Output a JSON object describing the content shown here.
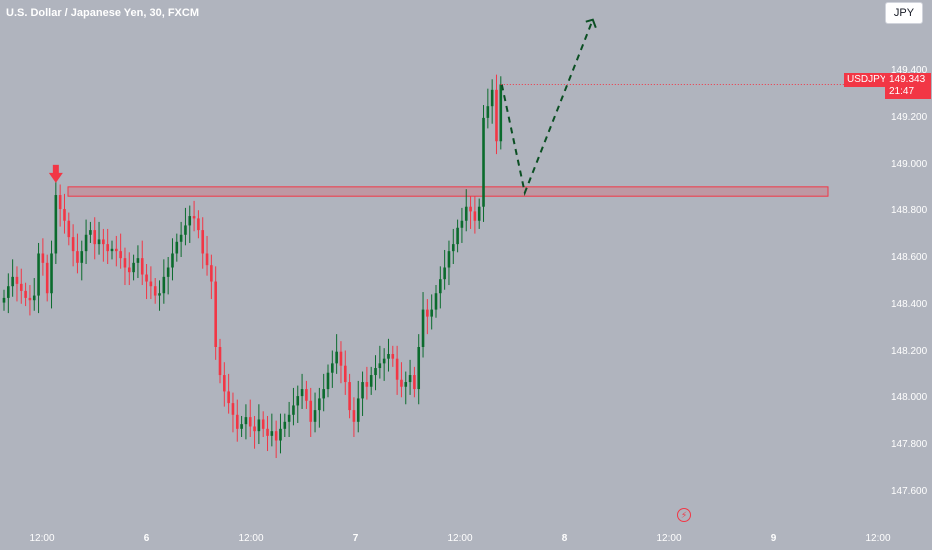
{
  "header": {
    "title": "U.S. Dollar / Japanese Yen, 30, FXCM"
  },
  "currency_button": {
    "label": "JPY"
  },
  "price_label": {
    "symbol": "USDJPY",
    "price": "149.343",
    "countdown": "21:47"
  },
  "chart_data": {
    "type": "candlestick",
    "title": "U.S. Dollar / Japanese Yen, 30, FXCM",
    "y_ticks": [
      "149.400",
      "149.200",
      "149.000",
      "148.800",
      "148.600",
      "148.400",
      "148.200",
      "148.000",
      "147.800",
      "147.600"
    ],
    "ylim": [
      147.48,
      149.67
    ],
    "x_ticks": [
      {
        "label": "12:00",
        "bold": false
      },
      {
        "label": "6",
        "bold": true
      },
      {
        "label": "12:00",
        "bold": false
      },
      {
        "label": "7",
        "bold": true
      },
      {
        "label": "12:00",
        "bold": false
      },
      {
        "label": "8",
        "bold": true
      },
      {
        "label": "12:00",
        "bold": false
      },
      {
        "label": "9",
        "bold": true
      },
      {
        "label": "12:00",
        "bold": false
      }
    ],
    "last_price": 149.343,
    "resistance_zone": {
      "low": 148.865,
      "high": 148.905
    },
    "projection_path": [
      149.343,
      148.88,
      149.62
    ],
    "closes": [
      148.43,
      148.48,
      148.52,
      148.49,
      148.46,
      148.43,
      148.42,
      148.44,
      148.62,
      148.58,
      148.45,
      148.62,
      148.87,
      148.81,
      148.76,
      148.69,
      148.63,
      148.58,
      148.63,
      148.7,
      148.72,
      148.66,
      148.68,
      148.66,
      148.63,
      148.64,
      148.63,
      148.6,
      148.56,
      148.54,
      148.58,
      148.6,
      148.53,
      148.5,
      148.48,
      148.44,
      148.45,
      148.52,
      148.56,
      148.62,
      148.67,
      148.7,
      148.74,
      148.78,
      148.77,
      148.72,
      148.62,
      148.57,
      148.5,
      148.22,
      148.1,
      148.03,
      147.98,
      147.93,
      147.87,
      147.89,
      147.92,
      147.88,
      147.86,
      147.91,
      147.87,
      147.84,
      147.86,
      147.82,
      147.87,
      147.9,
      147.93,
      147.97,
      148.01,
      148.04,
      147.99,
      147.9,
      147.95,
      148.0,
      148.04,
      148.11,
      148.15,
      148.2,
      148.14,
      148.07,
      147.95,
      147.9,
      148.0,
      148.07,
      148.05,
      148.1,
      148.13,
      148.15,
      148.17,
      148.19,
      148.17,
      148.08,
      148.05,
      148.07,
      148.1,
      148.04,
      148.22,
      148.38,
      148.35,
      148.38,
      148.45,
      148.51,
      148.56,
      148.63,
      148.66,
      148.73,
      148.76,
      148.82,
      148.8,
      148.76,
      148.82,
      149.2,
      149.25,
      149.32,
      149.1,
      149.343
    ],
    "last_visible_label": "12:00"
  }
}
